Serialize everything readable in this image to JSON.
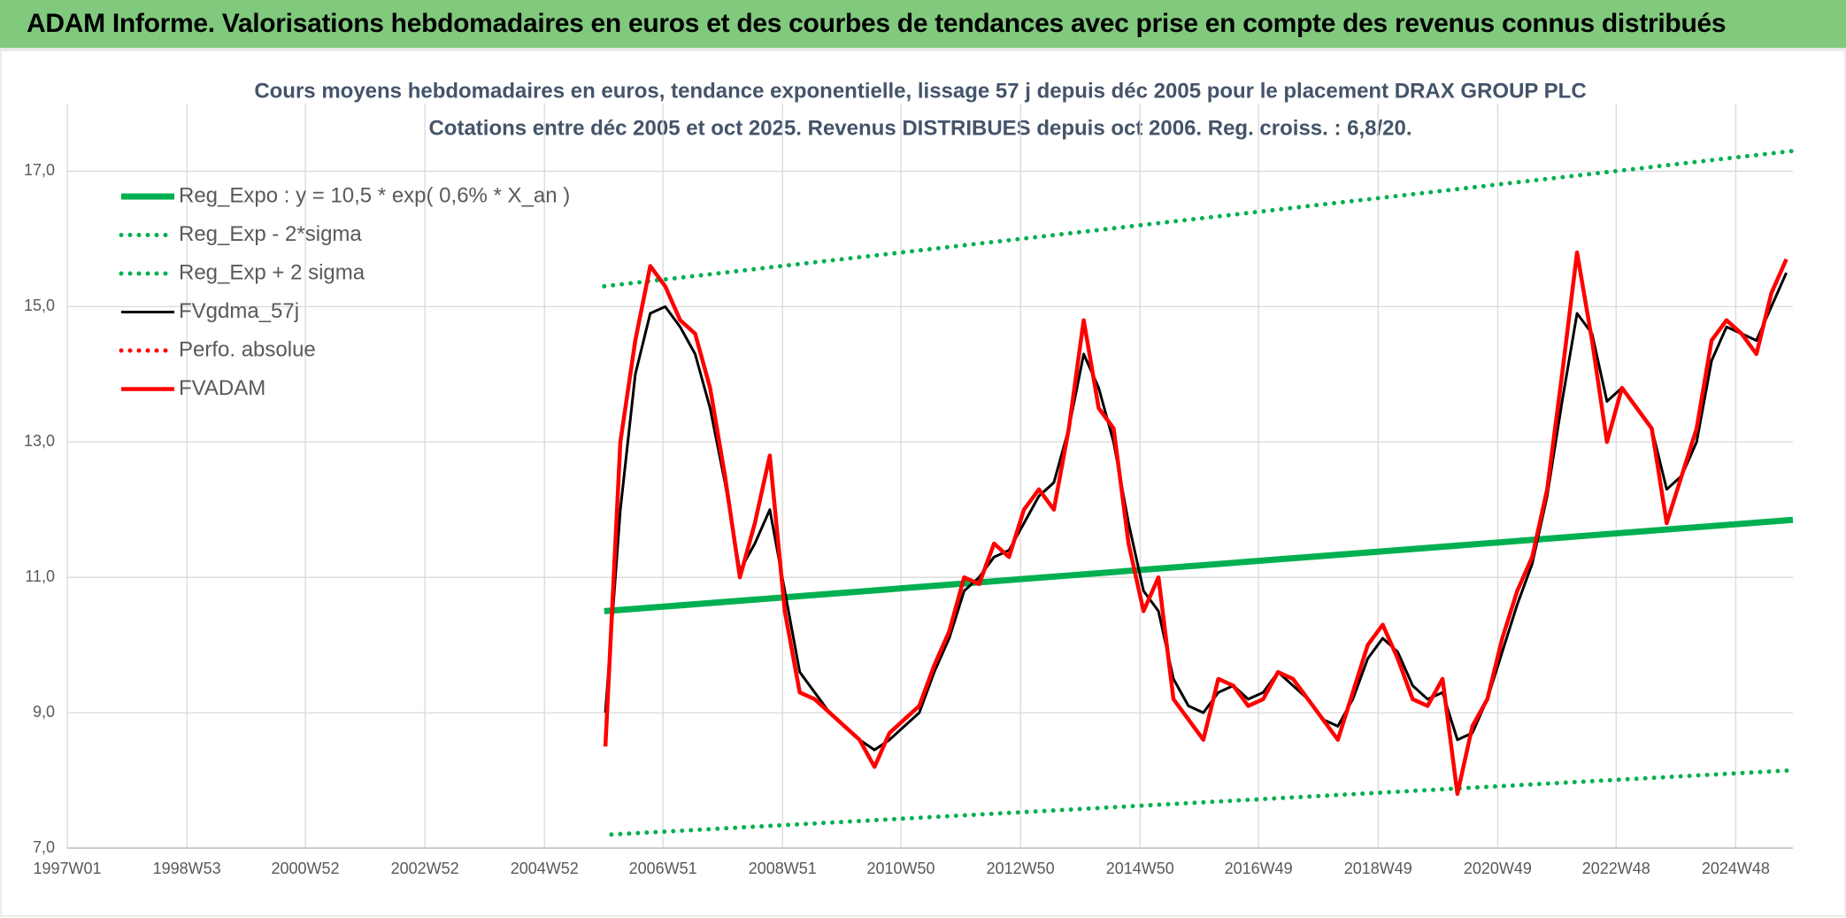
{
  "header": {
    "title": "ADAM Informe. Valorisations hebdomadaires en euros et des courbes de tendances avec prise en compte des revenus connus distribués"
  },
  "chart_data": {
    "type": "line",
    "title": "Cours moyens hebdomadaires en euros, tendance exponentielle, lissage 57 j depuis déc 2005 pour le placement DRAX GROUP PLC",
    "subtitle": "Cotations entre déc 2005 et oct 2025. Revenus DISTRIBUES depuis oct 2006. Reg. croiss. : 6,8/20.",
    "xlim": [
      1997.0,
      2025.86
    ],
    "xticks": [
      {
        "value": 1997.0,
        "label": "1997W01"
      },
      {
        "value": 1999.0,
        "label": "1998W53"
      },
      {
        "value": 2000.981,
        "label": "2000W52"
      },
      {
        "value": 2002.981,
        "label": "2002W52"
      },
      {
        "value": 2004.981,
        "label": "2004W52"
      },
      {
        "value": 2006.962,
        "label": "2006W51"
      },
      {
        "value": 2008.962,
        "label": "2008W51"
      },
      {
        "value": 2010.942,
        "label": "2010W50"
      },
      {
        "value": 2012.942,
        "label": "2012W50"
      },
      {
        "value": 2014.942,
        "label": "2014W50"
      },
      {
        "value": 2016.923,
        "label": "2016W49"
      },
      {
        "value": 2018.923,
        "label": "2018W49"
      },
      {
        "value": 2020.923,
        "label": "2020W49"
      },
      {
        "value": 2022.904,
        "label": "2022W48"
      },
      {
        "value": 2024.904,
        "label": "2024W48"
      }
    ],
    "ylim": [
      7,
      18
    ],
    "yticks": [
      {
        "value": 7,
        "label": "7,0"
      },
      {
        "value": 9,
        "label": "9,0"
      },
      {
        "value": 11,
        "label": "11,0"
      },
      {
        "value": 13,
        "label": "13,0"
      },
      {
        "value": 15,
        "label": "15,0"
      },
      {
        "value": 17,
        "label": "17,0"
      }
    ],
    "grid": true,
    "legend": "top-left",
    "x": [
      2006,
      2006.25,
      2006.5,
      2006.75,
      2007,
      2007.25,
      2007.5,
      2007.75,
      2008,
      2008.25,
      2008.5,
      2008.75,
      2009,
      2009.25,
      2009.5,
      2009.75,
      2010,
      2010.25,
      2010.5,
      2010.75,
      2011,
      2011.25,
      2011.5,
      2011.75,
      2012,
      2012.25,
      2012.5,
      2012.75,
      2013,
      2013.25,
      2013.5,
      2013.75,
      2014,
      2014.25,
      2014.5,
      2014.75,
      2015,
      2015.25,
      2015.5,
      2015.75,
      2016,
      2016.25,
      2016.5,
      2016.75,
      2017,
      2017.25,
      2017.5,
      2017.75,
      2018,
      2018.25,
      2018.5,
      2018.75,
      2019,
      2019.25,
      2019.5,
      2019.75,
      2020,
      2020.25,
      2020.5,
      2020.75,
      2021,
      2021.25,
      2021.5,
      2021.75,
      2022,
      2022.25,
      2022.5,
      2022.75,
      2023,
      2023.25,
      2023.5,
      2023.75,
      2024,
      2024.25,
      2024.5,
      2024.75,
      2025,
      2025.25,
      2025.5,
      2025.75
    ],
    "series": [
      {
        "name": "Reg_Expo : y = 10,5 * exp( 0,6% *  X_an )",
        "color": "#00b050",
        "style": "solid",
        "x": [
          2005.98,
          2025.86
        ],
        "values": [
          10.5,
          11.85
        ]
      },
      {
        "name": "Reg_Exp - 2*sigma",
        "color": "#00b050",
        "style": "dotted",
        "x": [
          2006.1,
          2025.86
        ],
        "values": [
          7.2,
          8.15
        ]
      },
      {
        "name": "Reg_Exp + 2 sigma",
        "color": "#00b050",
        "style": "dotted",
        "x": [
          2005.98,
          2025.86
        ],
        "values": [
          15.3,
          17.3
        ]
      },
      {
        "name": "FVgdma_57j",
        "color": "#000000",
        "style": "solid",
        "values": [
          9.0,
          12.0,
          14.0,
          14.9,
          15.0,
          14.7,
          14.3,
          13.5,
          12.4,
          11.1,
          11.5,
          12.0,
          10.8,
          9.6,
          9.3,
          9.0,
          8.8,
          8.6,
          8.45,
          8.6,
          8.8,
          9.0,
          9.6,
          10.1,
          10.8,
          11.0,
          11.3,
          11.4,
          11.8,
          12.2,
          12.4,
          13.2,
          14.3,
          13.8,
          13.0,
          11.8,
          10.8,
          10.5,
          9.5,
          9.1,
          9.0,
          9.3,
          9.4,
          9.2,
          9.3,
          9.6,
          9.4,
          9.2,
          8.9,
          8.8,
          9.2,
          9.8,
          10.1,
          9.9,
          9.4,
          9.2,
          9.3,
          8.6,
          8.7,
          9.2,
          9.9,
          10.6,
          11.2,
          12.2,
          13.6,
          14.9,
          14.6,
          13.6,
          13.8,
          13.5,
          13.2,
          12.3,
          12.5,
          13.0,
          14.2,
          14.7,
          14.6,
          14.5,
          15.0,
          15.5
        ]
      },
      {
        "name": "Perfo. absolue",
        "color": "#ff0000",
        "style": "dotted",
        "x": [],
        "values": []
      },
      {
        "name": "FVADAM",
        "color": "#ff0000",
        "style": "solid",
        "values": [
          8.5,
          13.0,
          14.5,
          15.6,
          15.3,
          14.8,
          14.6,
          13.8,
          12.5,
          11.0,
          11.8,
          12.8,
          10.5,
          9.3,
          9.2,
          9.0,
          8.8,
          8.6,
          8.2,
          8.7,
          8.9,
          9.1,
          9.7,
          10.2,
          11.0,
          10.9,
          11.5,
          11.3,
          12.0,
          12.3,
          12.0,
          13.2,
          14.8,
          13.5,
          13.2,
          11.5,
          10.5,
          11.0,
          9.2,
          8.9,
          8.6,
          9.5,
          9.4,
          9.1,
          9.2,
          9.6,
          9.5,
          9.2,
          8.9,
          8.6,
          9.3,
          10.0,
          10.3,
          9.8,
          9.2,
          9.1,
          9.5,
          7.8,
          8.8,
          9.2,
          10.1,
          10.8,
          11.3,
          12.3,
          14.0,
          15.8,
          14.5,
          13.0,
          13.8,
          13.5,
          13.2,
          11.8,
          12.5,
          13.2,
          14.5,
          14.8,
          14.6,
          14.3,
          15.2,
          15.7
        ]
      }
    ]
  }
}
